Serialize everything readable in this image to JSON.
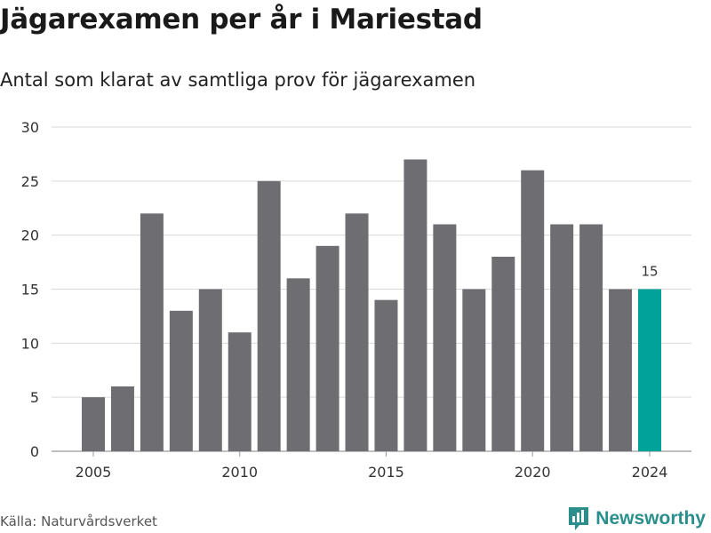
{
  "title": "Jägarexamen per år i Mariestad",
  "subtitle": "Antal som klarat av samtliga prov för jägarexamen",
  "source": "Källa: Naturvårdsverket",
  "brand": {
    "name": "Newsworthy",
    "icon": "newsworthy-logo-icon",
    "color": "#2a8f8c"
  },
  "colors": {
    "bar": "#6e6d72",
    "highlight": "#00a29a",
    "grid": "#d9d9d9",
    "text": "#333333"
  },
  "chart_data": {
    "type": "bar",
    "categories": [
      "2005",
      "2006",
      "2007",
      "2008",
      "2009",
      "2010",
      "2011",
      "2012",
      "2013",
      "2014",
      "2015",
      "2016",
      "2017",
      "2018",
      "2019",
      "2020",
      "2021",
      "2022",
      "2023",
      "2024"
    ],
    "values": [
      5,
      6,
      22,
      13,
      15,
      11,
      25,
      16,
      19,
      22,
      14,
      27,
      21,
      15,
      18,
      26,
      21,
      21,
      15,
      15
    ],
    "x_tick_labels": [
      "2005",
      "2010",
      "2015",
      "2020",
      "2024"
    ],
    "y_ticks": [
      0,
      5,
      10,
      15,
      20,
      25,
      30
    ],
    "ylim": [
      0,
      30
    ],
    "grid": true,
    "highlight": {
      "category": "2024",
      "label": "15"
    },
    "xlabel": "",
    "ylabel": ""
  }
}
